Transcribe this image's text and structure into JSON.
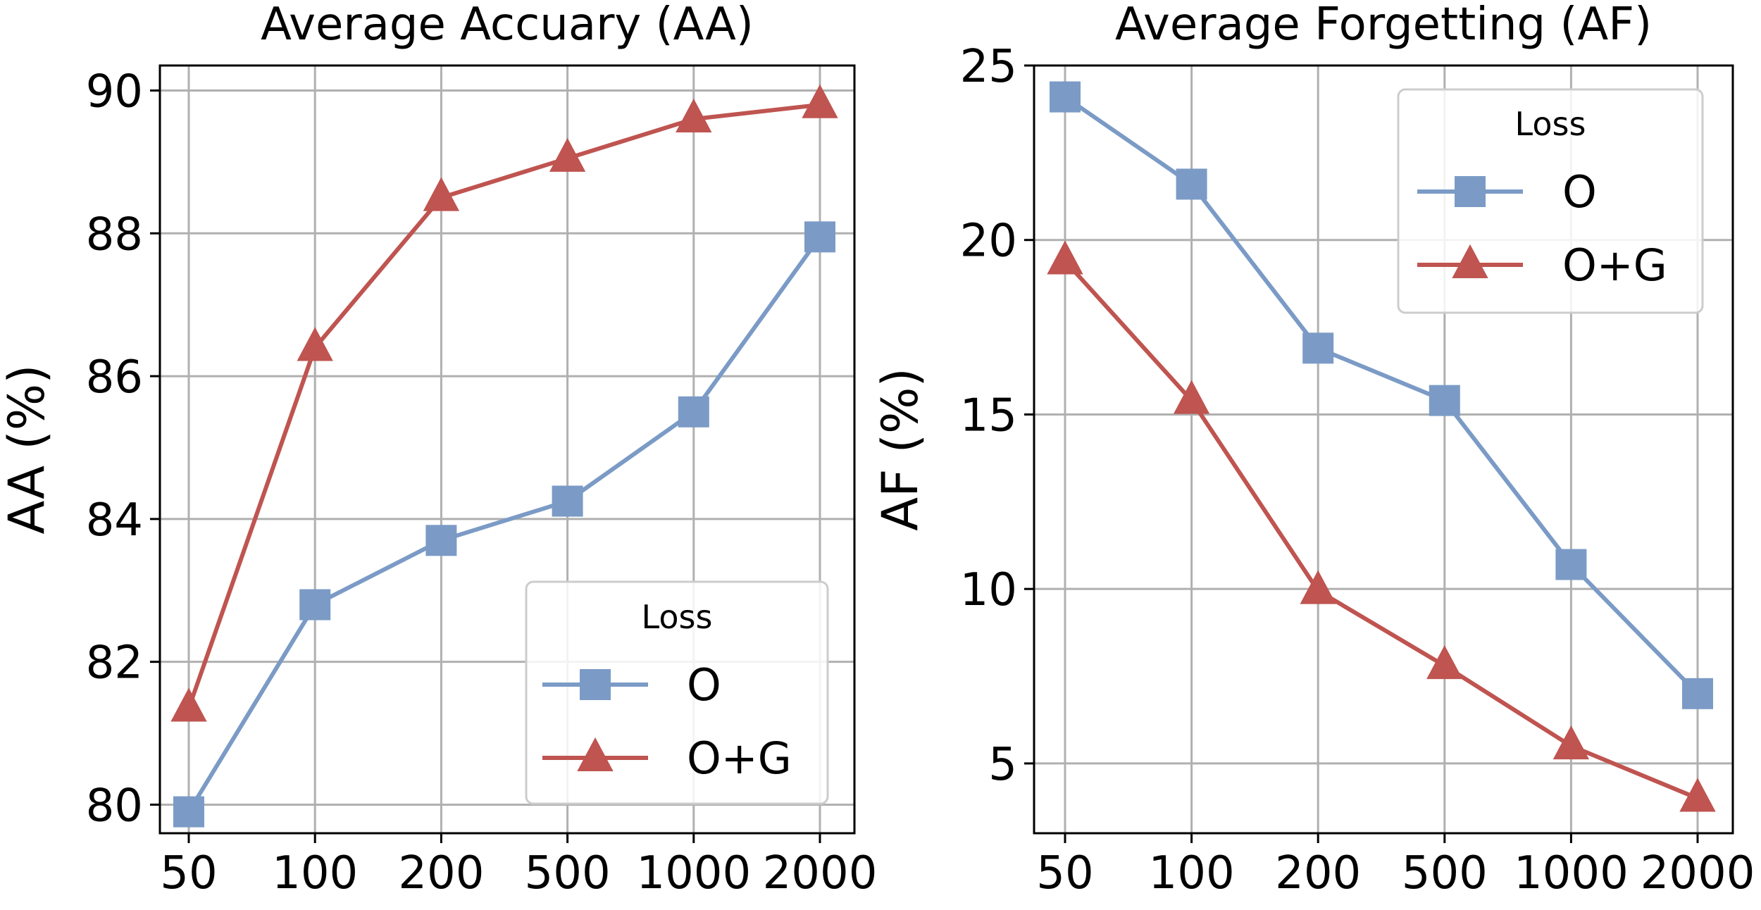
{
  "chart_data": [
    {
      "type": "line",
      "title": "Average Accuary (AA)",
      "xlabel": "",
      "ylabel": "AA (%)",
      "categories": [
        "50",
        "100",
        "200",
        "500",
        "1000",
        "2000"
      ],
      "yticks": [
        "80",
        "82",
        "84",
        "86",
        "88",
        "90"
      ],
      "ylim": [
        79.6,
        90.35
      ],
      "grid": true,
      "legend": {
        "title": "Loss",
        "position": "lower-right"
      },
      "series": [
        {
          "name": "O",
          "marker": "square",
          "color": "#7b9bc6",
          "values": [
            79.9,
            82.8,
            83.7,
            84.25,
            85.5,
            87.95
          ]
        },
        {
          "name": "O+G",
          "marker": "triangle",
          "color": "#bf5450",
          "values": [
            81.35,
            86.4,
            88.5,
            89.05,
            89.6,
            89.8
          ]
        }
      ]
    },
    {
      "type": "line",
      "title": "Average Forgetting (AF)",
      "xlabel": "",
      "ylabel": "AF (%)",
      "categories": [
        "50",
        "100",
        "200",
        "500",
        "1000",
        "2000"
      ],
      "yticks": [
        "5",
        "10",
        "15",
        "20",
        "25"
      ],
      "ylim": [
        3.0,
        25.0
      ],
      "grid": true,
      "legend": {
        "title": "Loss",
        "position": "upper-right"
      },
      "series": [
        {
          "name": "O",
          "marker": "square",
          "color": "#7b9bc6",
          "values": [
            24.1,
            21.6,
            16.9,
            15.4,
            10.7,
            7.0
          ]
        },
        {
          "name": "O+G",
          "marker": "triangle",
          "color": "#bf5450",
          "values": [
            19.4,
            15.4,
            9.95,
            7.8,
            5.5,
            4.0
          ]
        }
      ]
    }
  ]
}
